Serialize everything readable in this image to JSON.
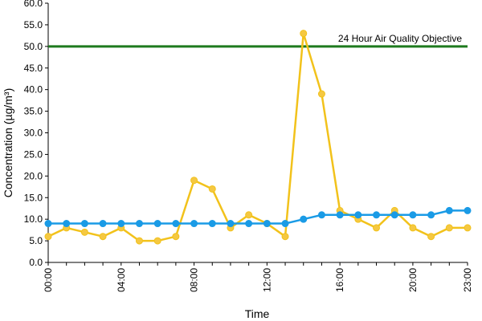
{
  "chart_data": {
    "type": "line",
    "title": "",
    "xlabel": "Time",
    "ylabel": "Concentration (µg/m³)",
    "ylim": [
      0,
      60
    ],
    "yticks": [
      "0.0",
      "5.0",
      "10.0",
      "15.0",
      "20.0",
      "25.0",
      "30.0",
      "35.0",
      "40.0",
      "45.0",
      "50.0",
      "55.0",
      "60.0"
    ],
    "x": [
      "00:00",
      "01:00",
      "02:00",
      "03:00",
      "04:00",
      "05:00",
      "06:00",
      "07:00",
      "08:00",
      "09:00",
      "10:00",
      "11:00",
      "12:00",
      "13:00",
      "14:00",
      "15:00",
      "16:00",
      "17:00",
      "18:00",
      "19:00",
      "20:00",
      "21:00",
      "22:00",
      "23:00"
    ],
    "xtick_labels": [
      "00:00",
      "04:00",
      "08:00",
      "12:00",
      "16:00",
      "20:00",
      "23:00"
    ],
    "xtick_index": [
      0,
      4,
      8,
      12,
      16,
      20,
      23
    ],
    "grid": false,
    "legend": "none",
    "objective": {
      "label": "24 Hour Air Quality Objective",
      "value": 50,
      "color": "#1e7a1e"
    },
    "series": [
      {
        "color": "#f2c21b",
        "marker_fill": "#f5c842",
        "values": [
          6,
          8,
          7,
          6,
          8,
          5,
          5,
          6,
          19,
          17,
          8,
          11,
          9,
          6,
          53,
          39,
          12,
          10,
          8,
          12,
          8,
          6,
          8,
          8
        ]
      },
      {
        "color": "#1a9be6",
        "marker_fill": "#1a9be6",
        "values": [
          9,
          9,
          9,
          9,
          9,
          9,
          9,
          9,
          9,
          9,
          9,
          9,
          9,
          9,
          10,
          11,
          11,
          11,
          11,
          11,
          11,
          11,
          12,
          12
        ]
      }
    ]
  }
}
